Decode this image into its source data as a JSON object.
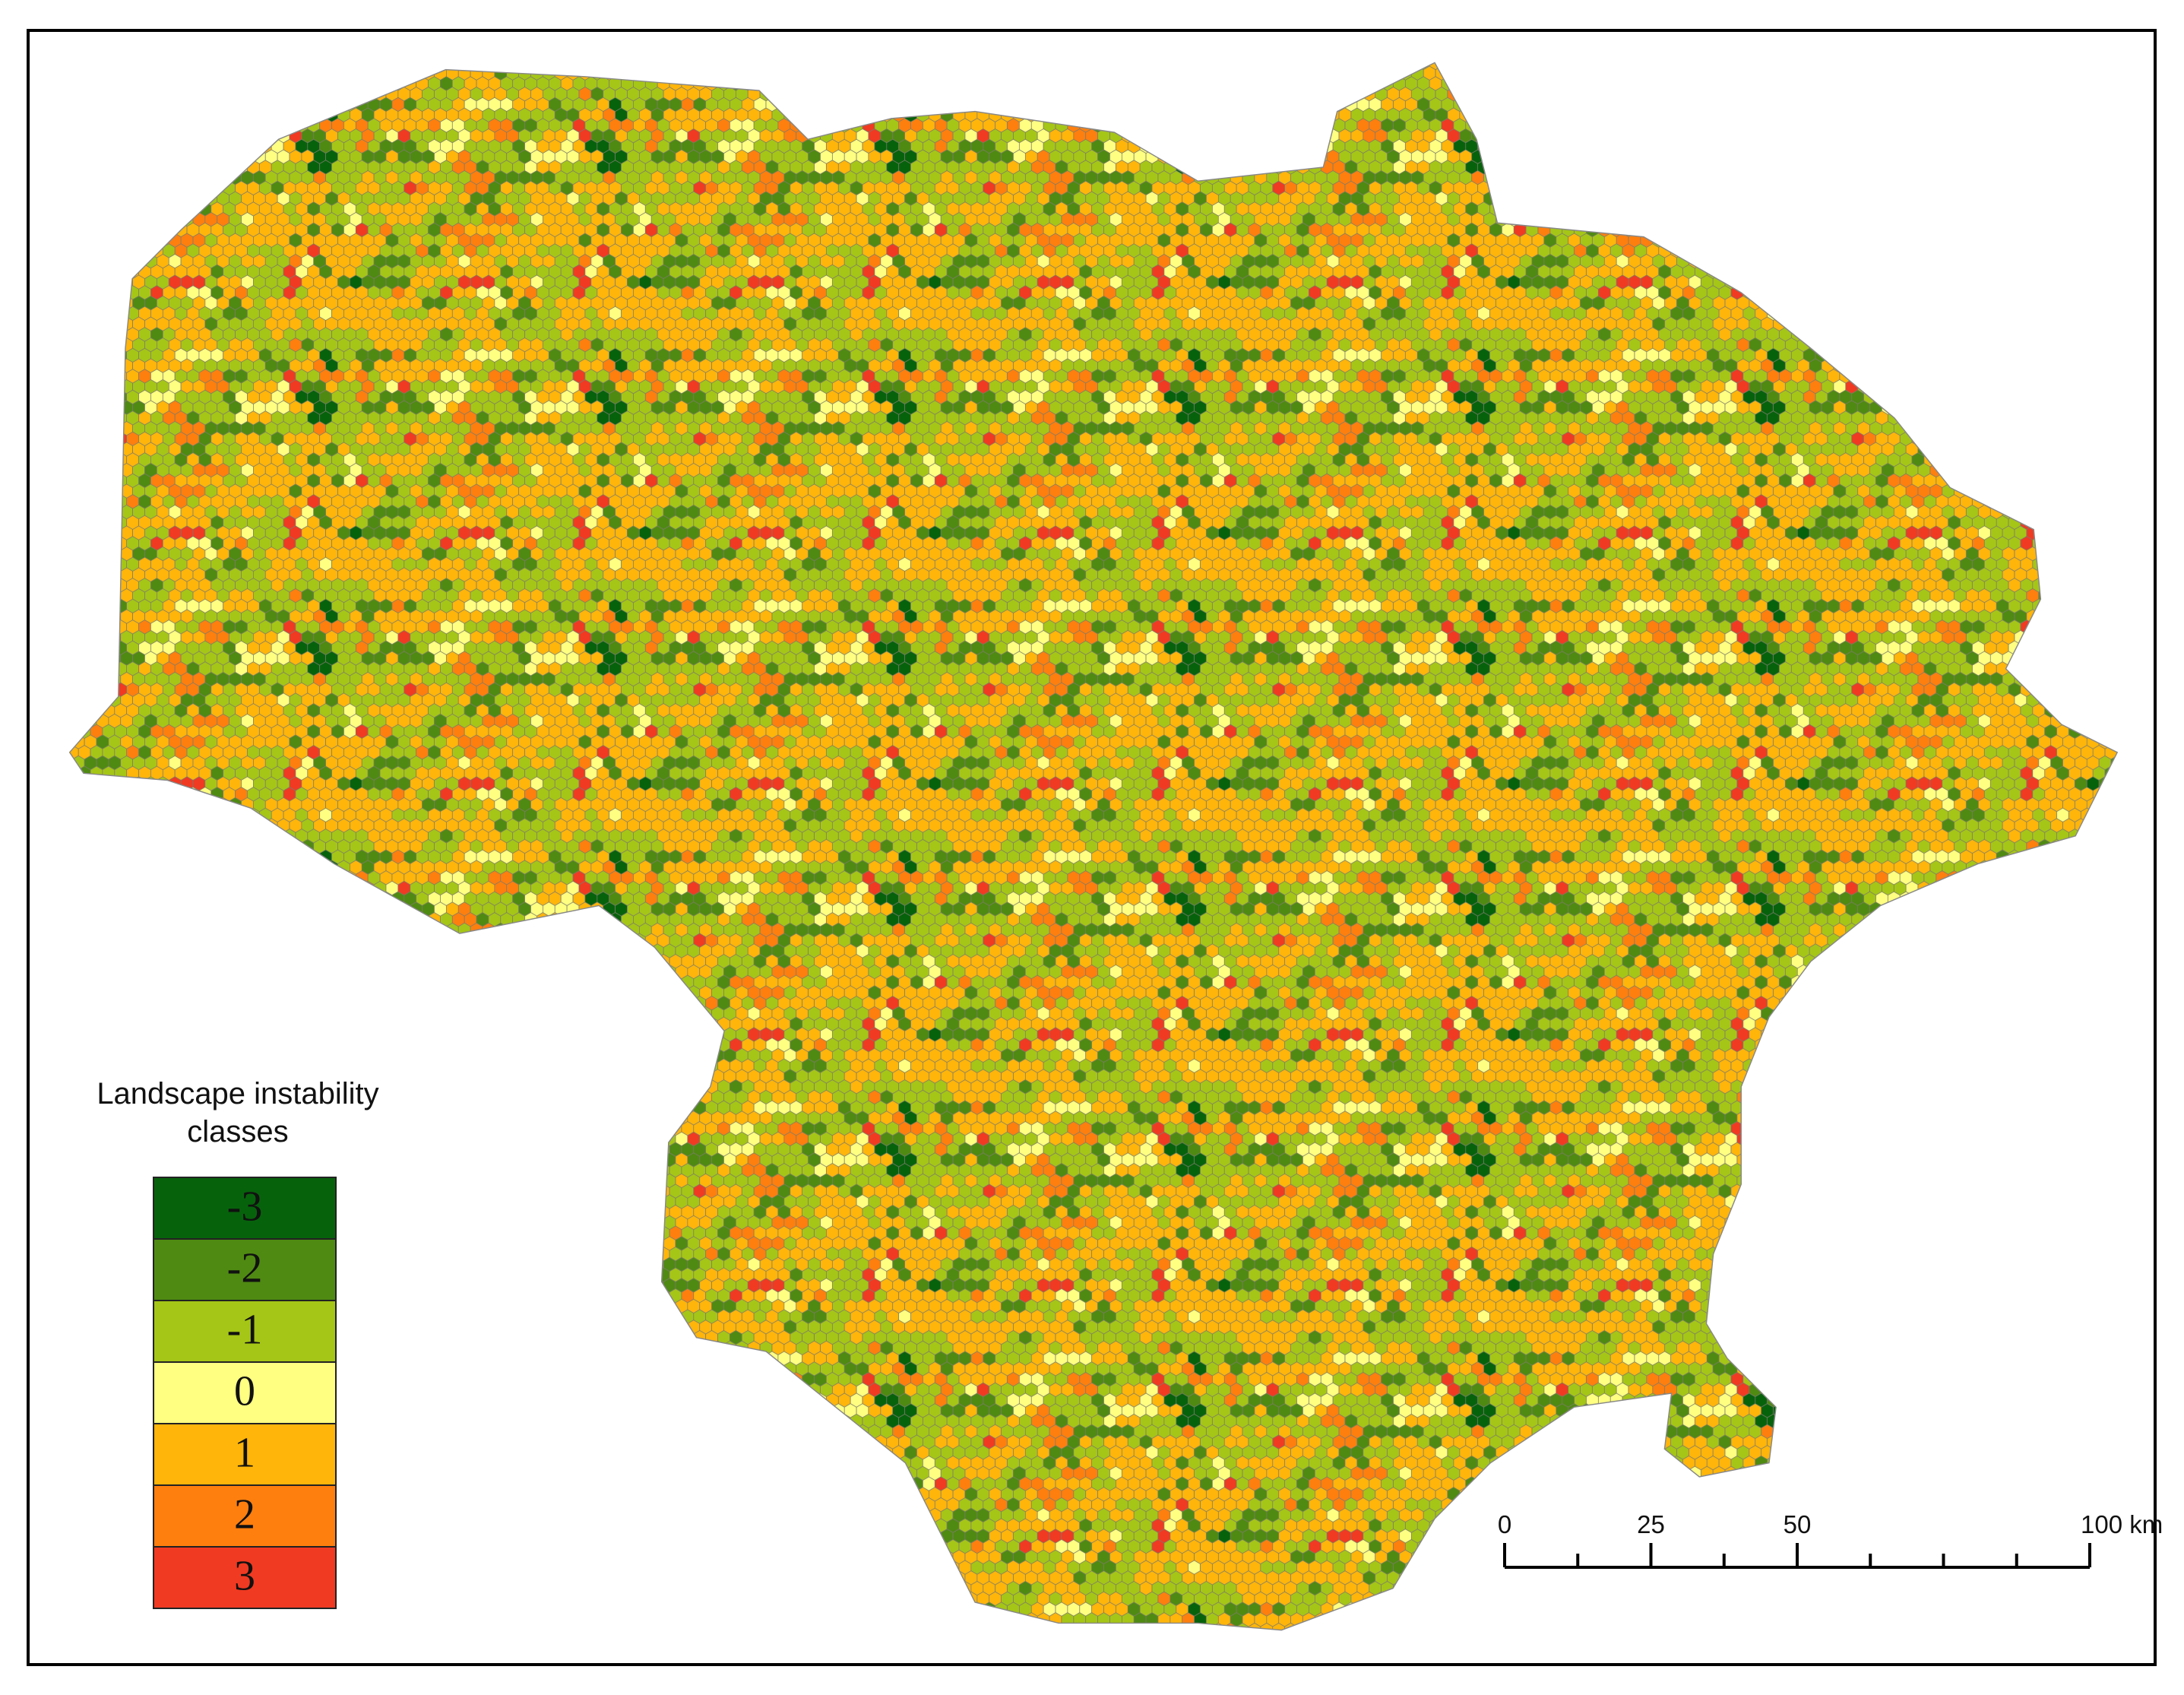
{
  "legend": {
    "title_lines": [
      "Landscape instability",
      "classes"
    ],
    "classes": [
      {
        "label": "-3",
        "color": "#07620c"
      },
      {
        "label": "-2",
        "color": "#4f8a12"
      },
      {
        "label": "-1",
        "color": "#a5c616"
      },
      {
        "label": "0",
        "color": "#ffff82"
      },
      {
        "label": "1",
        "color": "#ffb50a"
      },
      {
        "label": "2",
        "color": "#ff7f0e"
      },
      {
        "label": "3",
        "color": "#f03a22"
      }
    ]
  },
  "scale_bar": {
    "range": [
      0,
      100
    ],
    "ticks": [
      0,
      25,
      50,
      {
        "value": 100,
        "label": "100 km"
      }
    ],
    "minor_ticks": [
      12.5,
      37.5,
      62.5,
      75,
      87.5
    ]
  }
}
